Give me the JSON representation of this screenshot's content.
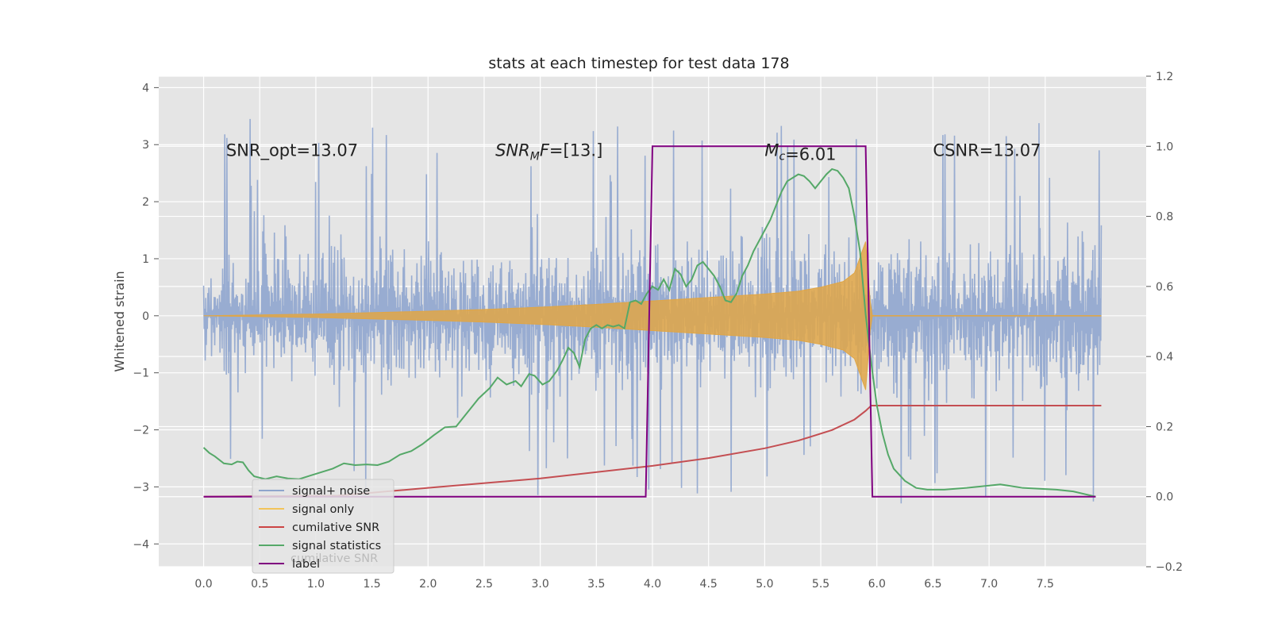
{
  "chart_data": {
    "type": "line",
    "title": "stats at each timestep for test data 178",
    "ylabel": "Whitened strain",
    "xlabel": "",
    "xlim": [
      -0.4,
      8.4
    ],
    "ylim": [
      -4.4,
      4.2
    ],
    "y2lim": [
      -0.2,
      1.2
    ],
    "grid": true,
    "xticks": [
      0.0,
      0.5,
      1.0,
      1.5,
      2.0,
      2.5,
      3.0,
      3.5,
      4.0,
      4.5,
      5.0,
      5.5,
      6.0,
      6.5,
      7.0,
      7.5
    ],
    "xtick_labels": [
      "0.0",
      "0.5",
      "1.0",
      "1.5",
      "2.0",
      "2.5",
      "3.0",
      "3.5",
      "4.0",
      "4.5",
      "5.0",
      "5.5",
      "6.0",
      "6.5",
      "7.0",
      "7.5"
    ],
    "yticks": [
      -4,
      -3,
      -2,
      -1,
      0,
      1,
      2,
      3,
      4
    ],
    "ytick_labels": [
      "−4",
      "−3",
      "−2",
      "−1",
      "0",
      "1",
      "2",
      "3",
      "4"
    ],
    "y2ticks": [
      -0.2,
      0.0,
      0.2,
      0.4,
      0.6,
      0.8,
      1.0,
      1.2
    ],
    "y2tick_labels": [
      "−0.2",
      "0.0",
      "0.2",
      "0.4",
      "0.6",
      "0.8",
      "1.0",
      "1.2"
    ],
    "annotations": [
      {
        "id": "snr-opt",
        "text": "SNR_opt=13.07",
        "x": 0.2,
        "y": 2.9
      },
      {
        "id": "snr-mf",
        "text": "=[13.]",
        "x": 2.6,
        "y": 2.9,
        "math": {
          "base": "SNR",
          "sub": "M",
          "tail": "F"
        }
      },
      {
        "id": "mc",
        "text": "=6.01",
        "x": 5.0,
        "y": 2.9,
        "math": {
          "base": "M",
          "sub": "c",
          "tail": ""
        }
      },
      {
        "id": "csnr",
        "text": "CSNR=13.07",
        "x": 6.5,
        "y": 2.9
      }
    ],
    "legend": {
      "placement": "lower-left",
      "ghost_text": "cumilative SNR",
      "entries": [
        {
          "label": "signal+ noise",
          "color": "#8ea5cc"
        },
        {
          "label": "signal only",
          "color": "#f2c45a"
        },
        {
          "label": "cumilative SNR",
          "color": "#cc4444"
        },
        {
          "label": "signal statistics",
          "color": "#55a868"
        },
        {
          "label": "label",
          "color": "#800080"
        }
      ]
    },
    "series": [
      {
        "name": "signal+ noise",
        "axis": "left",
        "style": "noise-band",
        "color": "#93a9d0",
        "x_range": [
          0.0,
          8.0
        ],
        "envelope": {
          "typical": [
            -2.1,
            2.1
          ],
          "extreme": [
            -4.0,
            3.6
          ]
        }
      },
      {
        "name": "signal only",
        "axis": "left",
        "style": "chirp-band",
        "color": "#e0a646",
        "x": [
          0.0,
          1.0,
          2.0,
          2.5,
          3.0,
          3.5,
          4.0,
          4.5,
          5.0,
          5.3,
          5.5,
          5.7,
          5.8,
          5.9,
          5.95,
          8.0
        ],
        "amplitude": [
          0.0,
          0.03,
          0.08,
          0.11,
          0.15,
          0.2,
          0.26,
          0.32,
          0.38,
          0.43,
          0.5,
          0.6,
          0.75,
          1.3,
          0.0,
          0.0
        ]
      },
      {
        "name": "cumilative SNR",
        "axis": "right",
        "color": "#c44e52",
        "x": [
          0.0,
          1.2,
          2.0,
          3.0,
          4.0,
          4.5,
          5.0,
          5.3,
          5.6,
          5.8,
          5.9,
          5.95,
          8.0
        ],
        "y": [
          0.0,
          0.003,
          0.025,
          0.052,
          0.088,
          0.11,
          0.138,
          0.16,
          0.19,
          0.22,
          0.245,
          0.26,
          0.26
        ]
      },
      {
        "name": "signal statistics",
        "axis": "right",
        "color": "#55a868",
        "x": [
          0.0,
          0.05,
          0.1,
          0.18,
          0.25,
          0.3,
          0.35,
          0.4,
          0.45,
          0.55,
          0.65,
          0.75,
          0.85,
          0.95,
          1.05,
          1.15,
          1.25,
          1.35,
          1.45,
          1.55,
          1.65,
          1.75,
          1.85,
          1.95,
          2.05,
          2.15,
          2.25,
          2.35,
          2.45,
          2.55,
          2.62,
          2.7,
          2.78,
          2.83,
          2.9,
          2.95,
          3.02,
          3.08,
          3.15,
          3.2,
          3.25,
          3.3,
          3.35,
          3.4,
          3.45,
          3.5,
          3.55,
          3.6,
          3.65,
          3.7,
          3.75,
          3.8,
          3.85,
          3.9,
          3.95,
          4.0,
          4.05,
          4.1,
          4.15,
          4.2,
          4.25,
          4.3,
          4.35,
          4.4,
          4.45,
          4.5,
          4.55,
          4.6,
          4.65,
          4.7,
          4.75,
          4.8,
          4.85,
          4.9,
          4.95,
          5.0,
          5.05,
          5.1,
          5.15,
          5.2,
          5.25,
          5.3,
          5.35,
          5.4,
          5.45,
          5.5,
          5.55,
          5.6,
          5.65,
          5.7,
          5.75,
          5.8,
          5.85,
          5.9,
          5.95,
          6.0,
          6.05,
          6.1,
          6.15,
          6.25,
          6.35,
          6.45,
          6.6,
          6.8,
          6.95,
          7.1,
          7.3,
          7.6,
          7.75,
          7.95
        ],
        "y": [
          0.14,
          0.125,
          0.115,
          0.095,
          0.092,
          0.1,
          0.098,
          0.075,
          0.058,
          0.05,
          0.058,
          0.052,
          0.05,
          0.06,
          0.07,
          0.08,
          0.095,
          0.09,
          0.092,
          0.09,
          0.1,
          0.12,
          0.13,
          0.15,
          0.175,
          0.198,
          0.2,
          0.24,
          0.28,
          0.31,
          0.34,
          0.32,
          0.33,
          0.315,
          0.35,
          0.345,
          0.32,
          0.33,
          0.36,
          0.39,
          0.425,
          0.41,
          0.37,
          0.45,
          0.48,
          0.49,
          0.48,
          0.49,
          0.485,
          0.49,
          0.48,
          0.555,
          0.56,
          0.55,
          0.58,
          0.6,
          0.59,
          0.62,
          0.59,
          0.65,
          0.635,
          0.6,
          0.62,
          0.66,
          0.67,
          0.65,
          0.63,
          0.6,
          0.56,
          0.555,
          0.58,
          0.63,
          0.66,
          0.7,
          0.73,
          0.76,
          0.79,
          0.83,
          0.87,
          0.9,
          0.91,
          0.92,
          0.915,
          0.9,
          0.88,
          0.9,
          0.92,
          0.935,
          0.93,
          0.91,
          0.88,
          0.8,
          0.7,
          0.52,
          0.38,
          0.26,
          0.18,
          0.12,
          0.08,
          0.045,
          0.025,
          0.02,
          0.02,
          0.025,
          0.03,
          0.035,
          0.025,
          0.02,
          0.015,
          0.0
        ]
      },
      {
        "name": "label",
        "axis": "right",
        "color": "#800080",
        "x": [
          0.0,
          3.94,
          3.97,
          4.0,
          5.9,
          5.93,
          5.96,
          7.95
        ],
        "y": [
          0.0,
          0.0,
          0.5,
          1.0,
          1.0,
          0.5,
          0.0,
          0.0
        ]
      }
    ]
  }
}
